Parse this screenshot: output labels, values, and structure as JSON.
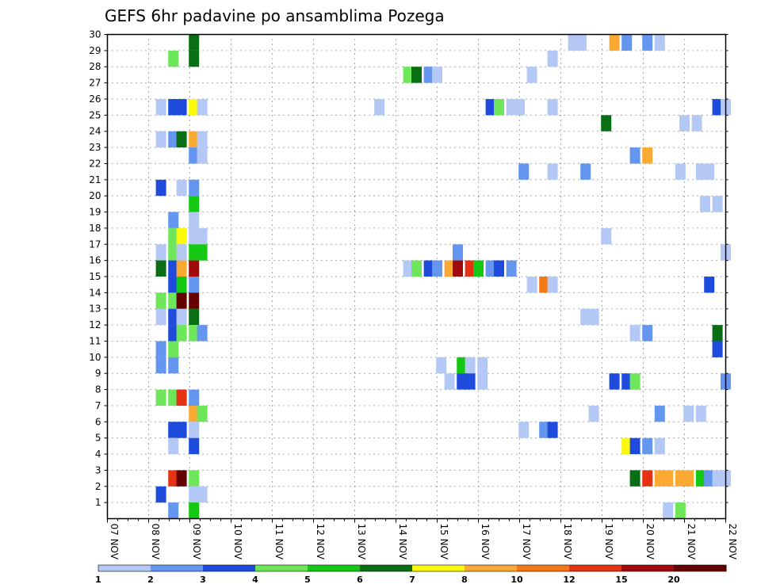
{
  "chart_data": {
    "type": "heatmap",
    "title": "GEFS 6hr padavine po ansamblima Pozega",
    "y_ticks": [
      "1",
      "2",
      "3",
      "4",
      "5",
      "6",
      "7",
      "8",
      "9",
      "10",
      "11",
      "12",
      "13",
      "14",
      "15",
      "16",
      "17",
      "18",
      "19",
      "20",
      "21",
      "22",
      "23",
      "24",
      "25",
      "26",
      "27",
      "28",
      "29",
      "30"
    ],
    "x_ticks": [
      "07 NOV",
      "08 NOV",
      "09 NOV",
      "10 NOV",
      "11 NOV",
      "12 NOV",
      "13 NOV",
      "14 NOV",
      "15 NOV",
      "16 NOV",
      "17 NOV",
      "18 NOV",
      "19 NOV",
      "20 NOV",
      "21 NOV",
      "22 NOV"
    ],
    "x_range": [
      7,
      22
    ],
    "y_range": [
      0,
      30
    ],
    "grid": true,
    "colorbar": {
      "labels": [
        "1",
        "2",
        "3",
        "4",
        "5",
        "6",
        "7",
        "8",
        "10",
        "12",
        "15",
        "20"
      ],
      "colors": [
        "#b4c8f5",
        "#6496f0",
        "#1e4bdc",
        "#6ee65a",
        "#14c814",
        "#0a6e14",
        "#fafa0a",
        "#faaa32",
        "#f57814",
        "#e63214",
        "#a00a0a",
        "#640000"
      ]
    },
    "cells": [
      [
        9.1,
        30,
        5
      ],
      [
        9.1,
        29,
        5
      ],
      [
        8.6,
        29,
        3
      ],
      [
        18.3,
        30,
        0
      ],
      [
        18.5,
        30,
        0
      ],
      [
        19.3,
        30,
        7
      ],
      [
        19.6,
        30,
        1
      ],
      [
        20.1,
        30,
        1
      ],
      [
        20.4,
        30,
        0
      ],
      [
        17.8,
        29,
        0
      ],
      [
        14.3,
        28,
        3
      ],
      [
        14.5,
        28,
        5
      ],
      [
        14.8,
        28,
        1
      ],
      [
        15.0,
        28,
        0
      ],
      [
        17.3,
        28,
        0
      ],
      [
        8.3,
        26,
        0
      ],
      [
        8.6,
        26,
        2
      ],
      [
        8.8,
        26,
        2
      ],
      [
        9.1,
        26,
        6
      ],
      [
        9.3,
        26,
        0
      ],
      [
        13.6,
        26,
        0
      ],
      [
        16.3,
        26,
        2
      ],
      [
        16.5,
        26,
        3
      ],
      [
        16.8,
        26,
        0
      ],
      [
        17.0,
        26,
        0
      ],
      [
        17.8,
        26,
        0
      ],
      [
        21.8,
        26,
        2
      ],
      [
        22.0,
        26,
        0
      ],
      [
        19.1,
        25,
        5
      ],
      [
        21.0,
        25,
        0
      ],
      [
        21.3,
        25,
        0
      ],
      [
        8.3,
        24,
        0
      ],
      [
        8.6,
        24,
        1
      ],
      [
        8.8,
        24,
        5
      ],
      [
        9.1,
        24,
        7
      ],
      [
        9.3,
        24,
        0
      ],
      [
        9.1,
        23,
        1
      ],
      [
        9.3,
        23,
        0
      ],
      [
        19.8,
        23,
        1
      ],
      [
        20.1,
        23,
        7
      ],
      [
        17.1,
        22,
        1
      ],
      [
        17.8,
        22,
        0
      ],
      [
        18.6,
        22,
        1
      ],
      [
        20.9,
        22,
        0
      ],
      [
        21.4,
        22,
        0
      ],
      [
        21.6,
        22,
        0
      ],
      [
        8.3,
        21,
        2
      ],
      [
        8.8,
        21,
        0
      ],
      [
        9.1,
        21,
        1
      ],
      [
        9.1,
        20,
        4
      ],
      [
        21.5,
        20,
        0
      ],
      [
        21.8,
        20,
        0
      ],
      [
        8.6,
        19,
        1
      ],
      [
        9.1,
        19,
        0
      ],
      [
        8.6,
        18,
        3
      ],
      [
        8.8,
        18,
        6
      ],
      [
        9.1,
        18,
        0
      ],
      [
        9.3,
        18,
        0
      ],
      [
        19.1,
        18,
        0
      ],
      [
        8.3,
        17,
        0
      ],
      [
        8.6,
        17,
        3
      ],
      [
        8.8,
        17,
        0
      ],
      [
        9.1,
        17,
        4
      ],
      [
        9.3,
        17,
        4
      ],
      [
        15.5,
        17,
        1
      ],
      [
        22.0,
        17,
        0
      ],
      [
        8.3,
        16,
        5
      ],
      [
        8.6,
        16,
        2
      ],
      [
        8.8,
        16,
        7
      ],
      [
        9.1,
        16,
        10
      ],
      [
        14.3,
        16,
        0
      ],
      [
        14.5,
        16,
        3
      ],
      [
        14.8,
        16,
        2
      ],
      [
        15.0,
        16,
        1
      ],
      [
        15.3,
        16,
        7
      ],
      [
        15.5,
        16,
        10
      ],
      [
        15.8,
        16,
        9
      ],
      [
        16.0,
        16,
        4
      ],
      [
        16.3,
        16,
        1
      ],
      [
        16.5,
        16,
        2
      ],
      [
        16.8,
        16,
        1
      ],
      [
        8.6,
        15,
        2
      ],
      [
        8.8,
        15,
        4
      ],
      [
        9.1,
        15,
        1
      ],
      [
        17.3,
        15,
        0
      ],
      [
        17.6,
        15,
        8
      ],
      [
        17.8,
        15,
        0
      ],
      [
        21.6,
        15,
        2
      ],
      [
        8.3,
        14,
        3
      ],
      [
        8.6,
        14,
        3
      ],
      [
        8.8,
        14,
        11
      ],
      [
        9.1,
        14,
        11
      ],
      [
        8.3,
        13,
        0
      ],
      [
        8.6,
        13,
        2
      ],
      [
        8.8,
        13,
        0
      ],
      [
        9.1,
        13,
        5
      ],
      [
        18.6,
        13,
        0
      ],
      [
        18.8,
        13,
        0
      ],
      [
        8.6,
        12,
        2
      ],
      [
        8.8,
        12,
        3
      ],
      [
        9.1,
        12,
        3
      ],
      [
        9.3,
        12,
        1
      ],
      [
        19.8,
        12,
        0
      ],
      [
        20.1,
        12,
        1
      ],
      [
        21.8,
        12,
        5
      ],
      [
        8.3,
        11,
        1
      ],
      [
        8.6,
        11,
        3
      ],
      [
        21.8,
        11,
        2
      ],
      [
        8.3,
        10,
        1
      ],
      [
        8.6,
        10,
        1
      ],
      [
        15.1,
        10,
        0
      ],
      [
        15.6,
        10,
        4
      ],
      [
        15.8,
        10,
        0
      ],
      [
        16.1,
        10,
        0
      ],
      [
        15.3,
        9,
        0
      ],
      [
        15.6,
        9,
        2
      ],
      [
        15.8,
        9,
        2
      ],
      [
        16.1,
        9,
        0
      ],
      [
        19.3,
        9,
        2
      ],
      [
        19.6,
        9,
        2
      ],
      [
        19.8,
        9,
        3
      ],
      [
        22.0,
        9,
        1
      ],
      [
        8.3,
        8,
        3
      ],
      [
        8.6,
        8,
        3
      ],
      [
        8.8,
        8,
        9
      ],
      [
        9.1,
        8,
        1
      ],
      [
        9.1,
        7,
        7
      ],
      [
        9.3,
        7,
        3
      ],
      [
        18.8,
        7,
        0
      ],
      [
        20.4,
        7,
        1
      ],
      [
        21.1,
        7,
        0
      ],
      [
        21.4,
        7,
        0
      ],
      [
        8.6,
        6,
        2
      ],
      [
        8.8,
        6,
        2
      ],
      [
        9.1,
        6,
        0
      ],
      [
        17.1,
        6,
        0
      ],
      [
        17.6,
        6,
        1
      ],
      [
        17.8,
        6,
        2
      ],
      [
        8.6,
        5,
        0
      ],
      [
        9.1,
        5,
        2
      ],
      [
        19.6,
        5,
        6
      ],
      [
        19.8,
        5,
        2
      ],
      [
        20.1,
        5,
        1
      ],
      [
        20.4,
        5,
        0
      ],
      [
        8.6,
        3,
        9
      ],
      [
        8.8,
        3,
        11
      ],
      [
        9.1,
        3,
        3
      ],
      [
        19.8,
        3,
        5
      ],
      [
        20.1,
        3,
        9
      ],
      [
        20.4,
        3,
        7
      ],
      [
        20.6,
        3,
        7
      ],
      [
        20.9,
        3,
        7
      ],
      [
        21.1,
        3,
        7
      ],
      [
        21.4,
        3,
        4
      ],
      [
        21.6,
        3,
        1
      ],
      [
        21.8,
        3,
        0
      ],
      [
        22.0,
        3,
        0
      ],
      [
        8.3,
        2,
        2
      ],
      [
        9.1,
        2,
        0
      ],
      [
        9.3,
        2,
        0
      ],
      [
        8.6,
        1,
        1
      ],
      [
        9.1,
        1,
        4
      ],
      [
        20.6,
        1,
        0
      ],
      [
        20.9,
        1,
        3
      ]
    ]
  }
}
